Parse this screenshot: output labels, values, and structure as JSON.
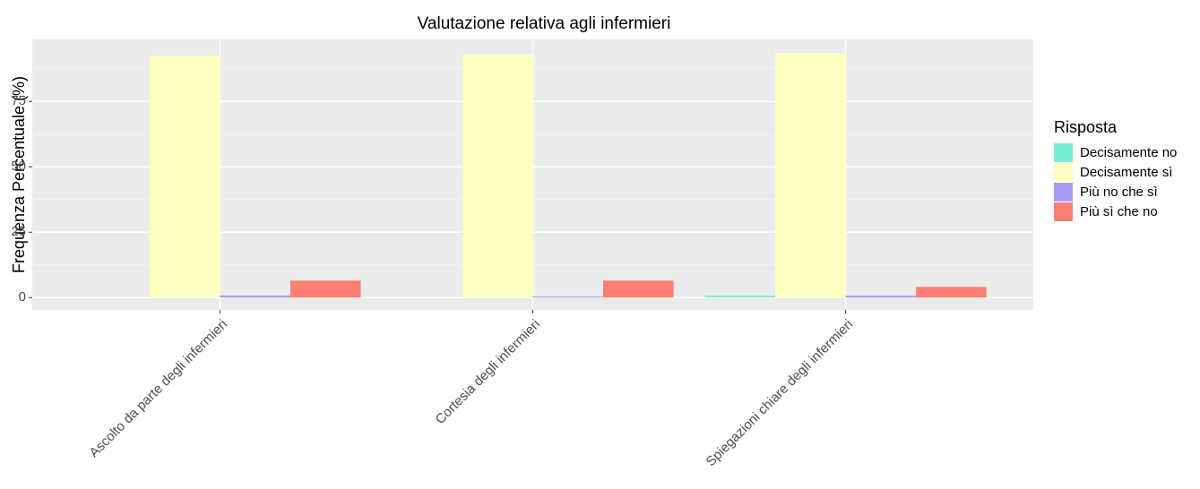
{
  "chart_data": {
    "type": "bar",
    "title": "Valutazione relativa agli infermieri",
    "y_label": "Frequenza Percentuale (%)",
    "legend_title": "Risposta",
    "categories": [
      "Ascolto da parte degli infermieri",
      "Cortesia degli infermieri",
      "Spiegazioni chiare degli infermieri"
    ],
    "series": [
      {
        "name": "Decisamente no",
        "color": "#76EED6",
        "values": [
          null,
          null,
          0.7
        ]
      },
      {
        "name": "Decisamente sì",
        "color": "#FFFFBF",
        "values": [
          92.5,
          92.8,
          93.5
        ]
      },
      {
        "name": "Più no che sì",
        "color": "#A99CF0",
        "values": [
          0.8,
          0.4,
          0.7
        ]
      },
      {
        "name": "Più sì che no",
        "color": "#FA8072",
        "values": [
          6.5,
          6.5,
          4.1
        ]
      }
    ],
    "ylim": [
      -4.7,
      98.7
    ],
    "yticks": [
      0,
      25,
      50,
      75
    ],
    "grid": true,
    "legend": "right"
  }
}
